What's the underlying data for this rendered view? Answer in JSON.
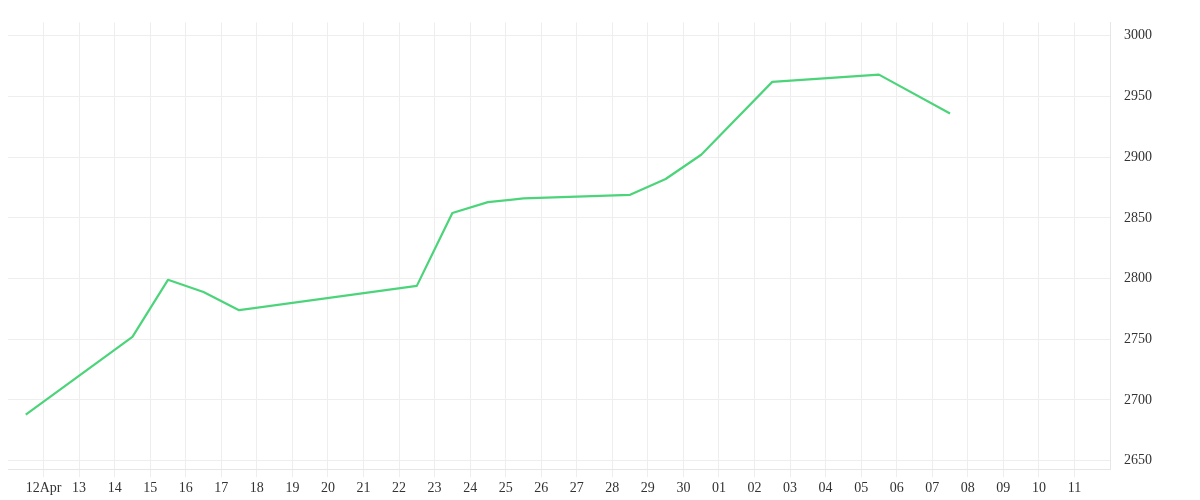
{
  "chart_data": {
    "type": "line",
    "x": [
      "--04-11T12:00",
      "--04-14T12:00",
      "--04-15T12:00",
      "--04-16T12:00",
      "--04-17T12:00",
      "--04-22T12:00",
      "--04-23T12:00",
      "--04-24T12:00",
      "--04-25T12:00",
      "--04-28T12:00",
      "--04-29T12:00",
      "--04-30T12:00",
      "--05-02T12:00",
      "--05-05T12:00",
      "--05-07T12:00"
    ],
    "series": [
      {
        "color": "#4cd47a",
        "values": [
          2688,
          2752,
          2799,
          2789,
          2774,
          2794,
          2854,
          2863,
          2866,
          2869,
          2882,
          2902,
          2962,
          2968,
          2936
        ]
      }
    ],
    "xlim": [
      "--04-11",
      "--05-12"
    ],
    "xticks": [
      {
        "value": "--04-12",
        "label": "12Apr"
      },
      {
        "value": "--04-13",
        "label": "13"
      },
      {
        "value": "--04-14",
        "label": "14"
      },
      {
        "value": "--04-15",
        "label": "15"
      },
      {
        "value": "--04-16",
        "label": "16"
      },
      {
        "value": "--04-17",
        "label": "17"
      },
      {
        "value": "--04-18",
        "label": "18"
      },
      {
        "value": "--04-19",
        "label": "19"
      },
      {
        "value": "--04-20",
        "label": "20"
      },
      {
        "value": "--04-21",
        "label": "21"
      },
      {
        "value": "--04-22",
        "label": "22"
      },
      {
        "value": "--04-23",
        "label": "23"
      },
      {
        "value": "--04-24",
        "label": "24"
      },
      {
        "value": "--04-25",
        "label": "25"
      },
      {
        "value": "--04-26",
        "label": "26"
      },
      {
        "value": "--04-27",
        "label": "27"
      },
      {
        "value": "--04-28",
        "label": "28"
      },
      {
        "value": "--04-29",
        "label": "29"
      },
      {
        "value": "--04-30",
        "label": "30"
      },
      {
        "value": "--05-01",
        "label": "01"
      },
      {
        "value": "--05-02",
        "label": "02"
      },
      {
        "value": "--05-03",
        "label": "03"
      },
      {
        "value": "--05-04",
        "label": "04"
      },
      {
        "value": "--05-05",
        "label": "05"
      },
      {
        "value": "--05-06",
        "label": "06"
      },
      {
        "value": "--05-07",
        "label": "07"
      },
      {
        "value": "--05-08",
        "label": "08"
      },
      {
        "value": "--05-09",
        "label": "09"
      },
      {
        "value": "--05-10",
        "label": "10"
      },
      {
        "value": "--05-11",
        "label": "11"
      }
    ],
    "ylim": [
      2643,
      3011
    ],
    "yticks": [
      2650,
      2700,
      2750,
      2800,
      2850,
      2900,
      2950,
      3000
    ],
    "grid": true,
    "legend": false,
    "marker": "none",
    "line_style": "solid"
  }
}
